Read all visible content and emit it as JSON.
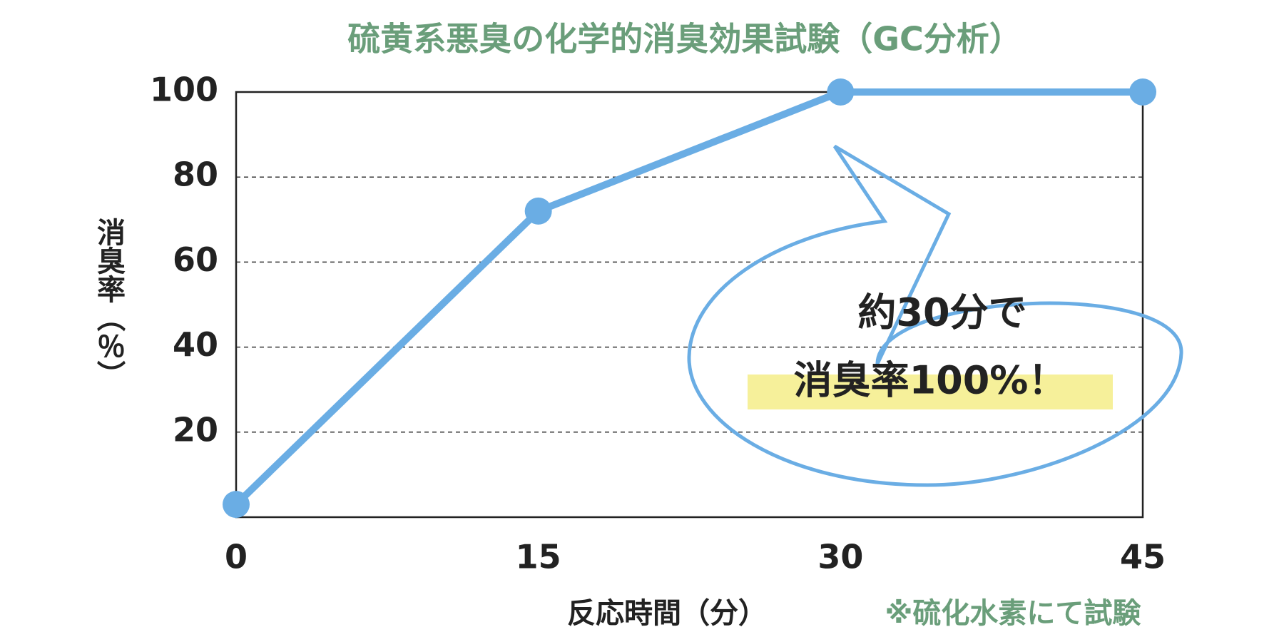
{
  "chart_data": {
    "type": "line",
    "title": "硫黄系悪臭の化学的消臭効果試験（GC分析）",
    "x_label": "反応時間（分）",
    "y_label": "消臭率（％）",
    "x": [
      0,
      15,
      30,
      45
    ],
    "series": [
      {
        "name": "消臭率",
        "color": "#6aade4",
        "values": [
          3,
          72,
          100,
          100
        ]
      }
    ],
    "xlim": [
      0,
      45
    ],
    "xticks": [
      0,
      15,
      30,
      45
    ],
    "ylim": [
      0,
      100
    ],
    "yticks": [
      20,
      40,
      60,
      80,
      100
    ],
    "grid": true,
    "annotations": [
      "約30分で",
      "消臭率100%！"
    ],
    "note": "※硫化水素にて試験"
  }
}
